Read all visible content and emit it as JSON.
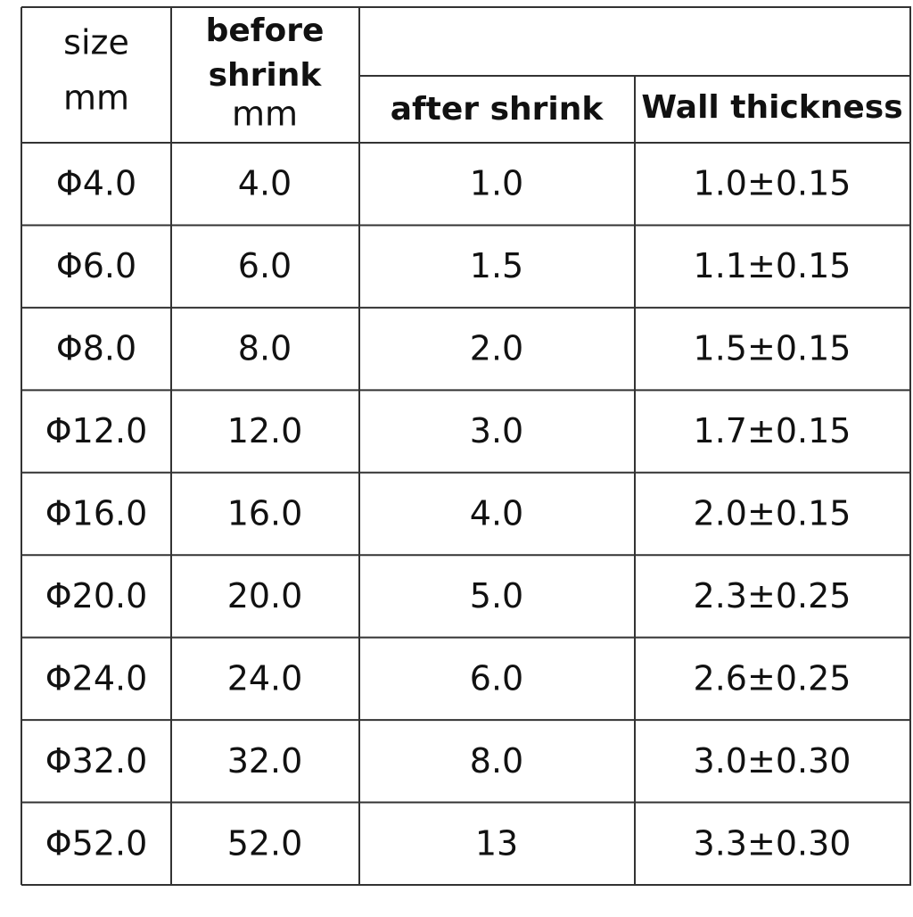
{
  "header": {
    "size": [
      "size",
      "mm"
    ],
    "before_shrink": [
      "before",
      "shrink",
      "mm"
    ],
    "after_shrink": "after shrink",
    "wall_thickness": "Wall thickness"
  },
  "table": {
    "rows": [
      [
        "Φ4.0",
        "4.0",
        "1.0",
        "1.0±0.15"
      ],
      [
        "Φ6.0",
        "6.0",
        "1.5",
        "1.1±0.15"
      ],
      [
        "Φ8.0",
        "8.0",
        "2.0",
        "1.5±0.15"
      ],
      [
        "Φ12.0",
        "12.0",
        "3.0",
        "1.7±0.15"
      ],
      [
        "Φ16.0",
        "16.0",
        "4.0",
        "2.0±0.15"
      ],
      [
        "Φ20.0",
        "20.0",
        "5.0",
        "2.3±0.25"
      ],
      [
        "Φ24.0",
        "24.0",
        "6.0",
        "2.6±0.25"
      ],
      [
        "Φ32.0",
        "32.0",
        "8.0",
        "3.0±0.30"
      ],
      [
        "Φ52.0",
        "52.0",
        "13",
        "3.3±0.30"
      ]
    ]
  }
}
